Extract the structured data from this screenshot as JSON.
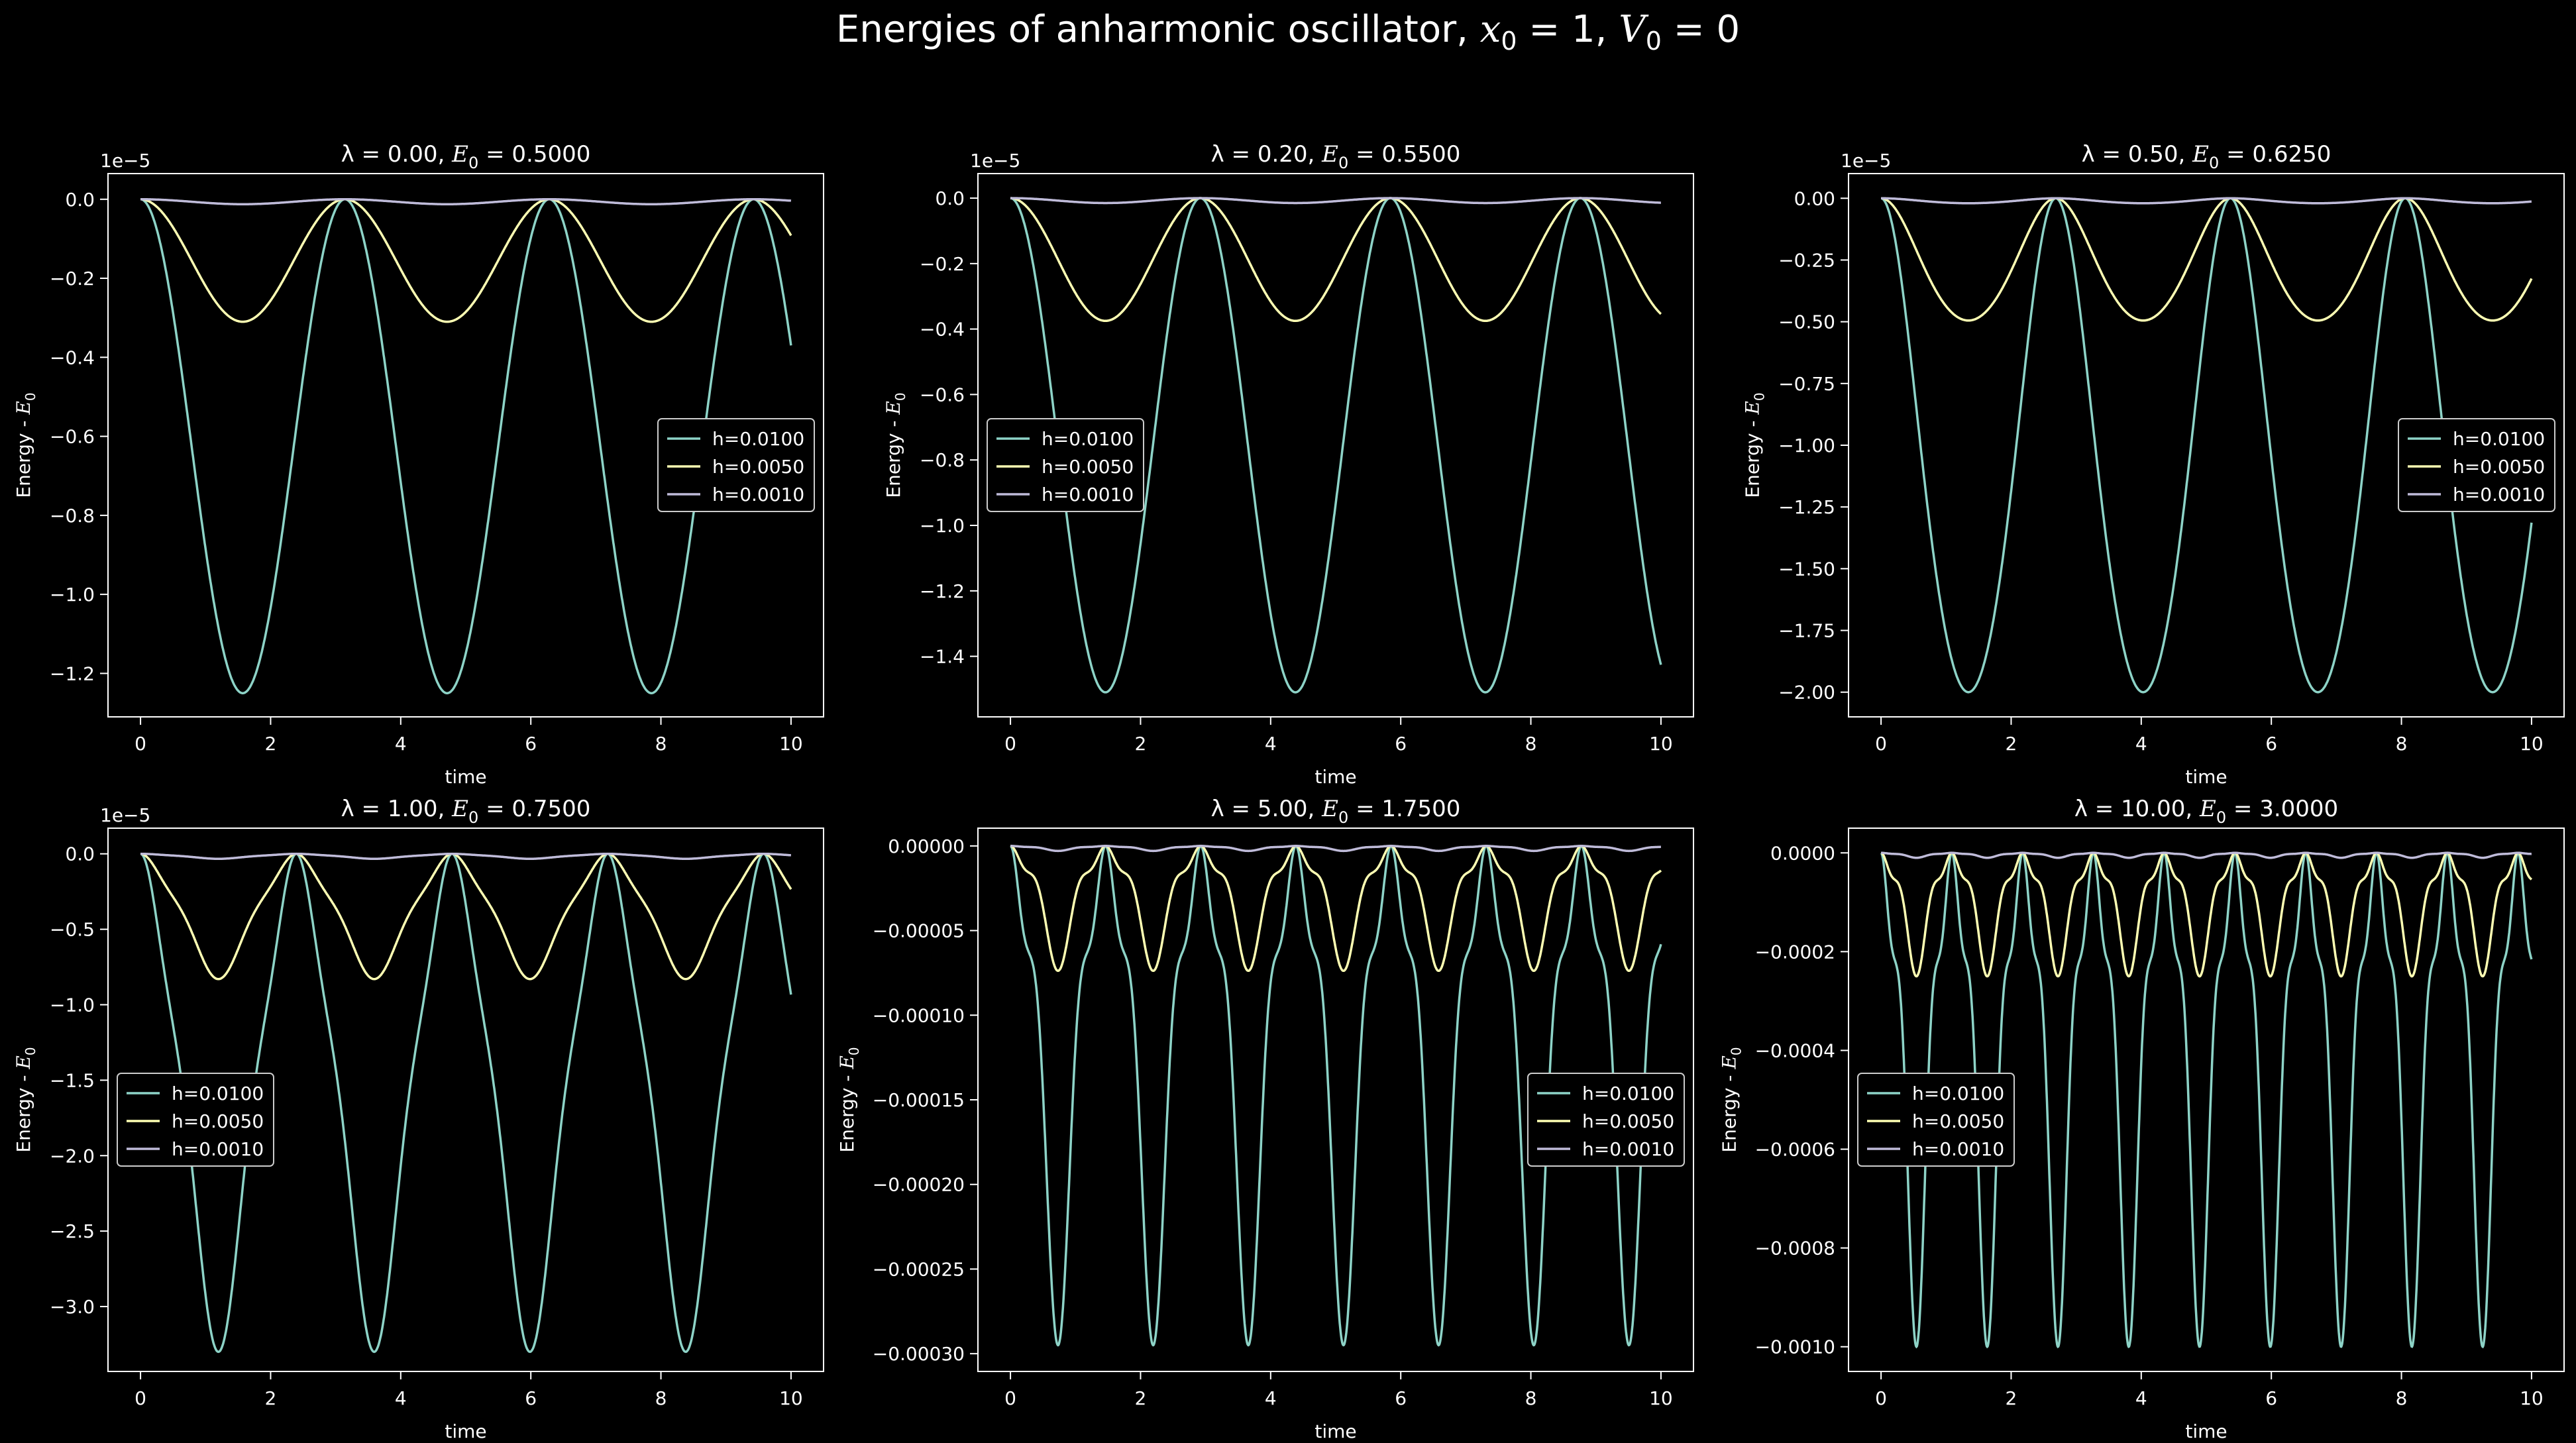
{
  "figure": {
    "background": "#000000",
    "foreground": "#ffffff",
    "title_text": "Energies of anharmonic oscillator, ",
    "title_math_1": "x",
    "title_math_1_sub": "0",
    "title_math_1_rest": " = 1,  ",
    "title_math_2": "V",
    "title_math_2_sub": "0",
    "title_math_2_rest": " = 0"
  },
  "colors": {
    "h=0.0100": "#8dd3c7",
    "h=0.0050": "#feffb3",
    "h=0.0010": "#bfbbd9",
    "axes": "#ffffff"
  },
  "chart_data": [
    {
      "type": "line",
      "title_lambda": "λ = 0.00,",
      "title_E": "E",
      "title_E_sub": "0",
      "title_E_value": " = 0.5000",
      "xlabel": "time",
      "ylabel_main": "Energy - ",
      "ylabel_E": "E",
      "ylabel_E_sub": "0",
      "offset_text": "1e−5",
      "xlim": [
        -0.5,
        10.5
      ],
      "ylim": [
        -1.31,
        0.065
      ],
      "xticks": [
        0,
        2,
        4,
        6,
        8,
        10
      ],
      "xtick_labels": [
        "0",
        "2",
        "4",
        "6",
        "8",
        "10"
      ],
      "yticks": [
        0,
        -0.2,
        -0.4,
        -0.6,
        -0.8,
        -1.0,
        -1.2
      ],
      "ytick_labels": [
        "0.0",
        "−0.2",
        "−0.4",
        "−0.6",
        "−0.8",
        "−1.0",
        "−1.2"
      ],
      "legend_position": "center-right",
      "series": [
        {
          "name": "h=0.0100",
          "curve": {
            "kind": "sin2",
            "amp": 1.25,
            "omega": 1.0
          }
        },
        {
          "name": "h=0.0050",
          "curve": {
            "kind": "sin2",
            "amp": 0.31,
            "omega": 1.0
          }
        },
        {
          "name": "h=0.0010",
          "curve": {
            "kind": "sin2",
            "amp": 0.0125,
            "omega": 1.0
          }
        }
      ]
    },
    {
      "type": "line",
      "title_lambda": "λ = 0.20,",
      "title_E": "E",
      "title_E_sub": "0",
      "title_E_value": " = 0.5500",
      "xlabel": "time",
      "ylabel_main": "Energy - ",
      "ylabel_E": "E",
      "ylabel_E_sub": "0",
      "offset_text": "1e−5",
      "xlim": [
        -0.5,
        10.5
      ],
      "ylim": [
        -1.585,
        0.075
      ],
      "xticks": [
        0,
        2,
        4,
        6,
        8,
        10
      ],
      "xtick_labels": [
        "0",
        "2",
        "4",
        "6",
        "8",
        "10"
      ],
      "yticks": [
        0,
        -0.2,
        -0.4,
        -0.6,
        -0.8,
        -1.0,
        -1.2,
        -1.4
      ],
      "ytick_labels": [
        "0.0",
        "−0.2",
        "−0.4",
        "−0.6",
        "−0.8",
        "−1.0",
        "−1.2",
        "−1.4"
      ],
      "legend_position": "center-left",
      "series": [
        {
          "name": "h=0.0100",
          "curve": {
            "kind": "sin2",
            "amp": 1.51,
            "omega": 1.0757
          }
        },
        {
          "name": "h=0.0050",
          "curve": {
            "kind": "sin2",
            "amp": 0.375,
            "omega": 1.0757
          }
        },
        {
          "name": "h=0.0010",
          "curve": {
            "kind": "sin2",
            "amp": 0.015,
            "omega": 1.0757
          }
        }
      ]
    },
    {
      "type": "line",
      "title_lambda": "λ = 0.50,",
      "title_E": "E",
      "title_E_sub": "0",
      "title_E_value": " = 0.6250",
      "xlabel": "time",
      "ylabel_main": "Energy - ",
      "ylabel_E": "E",
      "ylabel_E_sub": "0",
      "offset_text": "1e−5",
      "xlim": [
        -0.5,
        10.5
      ],
      "ylim": [
        -2.1,
        0.1
      ],
      "xticks": [
        0,
        2,
        4,
        6,
        8,
        10
      ],
      "xtick_labels": [
        "0",
        "2",
        "4",
        "6",
        "8",
        "10"
      ],
      "yticks": [
        0,
        -0.25,
        -0.5,
        -0.75,
        -1.0,
        -1.25,
        -1.5,
        -1.75,
        -2.0
      ],
      "ytick_labels": [
        "0.00",
        "−0.25",
        "−0.50",
        "−0.75",
        "−1.00",
        "−1.25",
        "−1.50",
        "−1.75",
        "−2.00"
      ],
      "legend_position": "center-right",
      "series": [
        {
          "name": "h=0.0100",
          "curve": {
            "kind": "flat",
            "amp": 2.0,
            "omega": 1.1696,
            "k": 0.36
          }
        },
        {
          "name": "h=0.0050",
          "curve": {
            "kind": "flat",
            "amp": 0.495,
            "omega": 1.1696,
            "k": 0.36
          }
        },
        {
          "name": "h=0.0010",
          "curve": {
            "kind": "flat",
            "amp": 0.02,
            "omega": 1.1696,
            "k": 0.36
          }
        }
      ]
    },
    {
      "type": "line",
      "title_lambda": "λ = 1.00,",
      "title_E": "E",
      "title_E_sub": "0",
      "title_E_value": " = 0.7500",
      "xlabel": "time",
      "ylabel_main": "Energy - ",
      "ylabel_E": "E",
      "ylabel_E_sub": "0",
      "offset_text": "1e−5",
      "xlim": [
        -0.5,
        10.5
      ],
      "ylim": [
        -3.43,
        0.17
      ],
      "xticks": [
        0,
        2,
        4,
        6,
        8,
        10
      ],
      "xtick_labels": [
        "0",
        "2",
        "4",
        "6",
        "8",
        "10"
      ],
      "yticks": [
        0,
        -0.5,
        -1.0,
        -1.5,
        -2.0,
        -2.5,
        -3.0
      ],
      "ytick_labels": [
        "0.0",
        "−0.5",
        "−1.0",
        "−1.5",
        "−2.0",
        "−2.5",
        "−3.0"
      ],
      "legend_position": "center-left",
      "series": [
        {
          "name": "h=0.0100",
          "curve": {
            "kind": "dip",
            "amp": 3.3,
            "omega": 1.312,
            "k": 0.55,
            "c": 0.3
          }
        },
        {
          "name": "h=0.0050",
          "curve": {
            "kind": "dip",
            "amp": 0.83,
            "omega": 1.312,
            "k": 0.55,
            "c": 0.3
          }
        },
        {
          "name": "h=0.0010",
          "curve": {
            "kind": "dip",
            "amp": 0.033,
            "omega": 1.312,
            "k": 0.55,
            "c": 0.3
          }
        }
      ]
    },
    {
      "type": "line",
      "title_lambda": "λ = 5.00,",
      "title_E": "E",
      "title_E_sub": "0",
      "title_E_value": " = 1.7500",
      "xlabel": "time",
      "ylabel_main": "Energy - ",
      "ylabel_E": "E",
      "ylabel_E_sub": "0",
      "offset_text": "",
      "xlim": [
        -0.5,
        10.5
      ],
      "ylim": [
        -0.0003105,
        1.05e-05
      ],
      "xticks": [
        0,
        2,
        4,
        6,
        8,
        10
      ],
      "xtick_labels": [
        "0",
        "2",
        "4",
        "6",
        "8",
        "10"
      ],
      "yticks": [
        0,
        -5e-05,
        -0.0001,
        -0.00015,
        -0.0002,
        -0.00025,
        -0.0003
      ],
      "ytick_labels": [
        "0.00000",
        "−0.00005",
        "−0.00010",
        "−0.00015",
        "−0.00020",
        "−0.00025",
        "−0.00030"
      ],
      "legend_position": "center-right",
      "series": [
        {
          "name": "h=0.0100",
          "curve": {
            "kind": "dip",
            "amp": 0.000295,
            "omega": 2.1477,
            "k": 0.7,
            "c": 0.6
          }
        },
        {
          "name": "h=0.0050",
          "curve": {
            "kind": "dip",
            "amp": 7.38e-05,
            "omega": 2.1477,
            "k": 0.7,
            "c": 0.6
          }
        },
        {
          "name": "h=0.0010",
          "curve": {
            "kind": "dip",
            "amp": 2.95e-06,
            "omega": 2.1477,
            "k": 0.7,
            "c": 0.6
          }
        }
      ]
    },
    {
      "type": "line",
      "title_lambda": "λ = 10.00,",
      "title_E": "E",
      "title_E_sub": "0",
      "title_E_value": " = 3.0000",
      "xlabel": "time",
      "ylabel_main": "Energy - ",
      "ylabel_E": "E",
      "ylabel_E_sub": "0",
      "offset_text": "",
      "xlim": [
        -0.5,
        10.5
      ],
      "ylim": [
        -0.00105,
        5e-05
      ],
      "xticks": [
        0,
        2,
        4,
        6,
        8,
        10
      ],
      "xtick_labels": [
        "0",
        "2",
        "4",
        "6",
        "8",
        "10"
      ],
      "yticks": [
        0,
        -0.0002,
        -0.0004,
        -0.0006,
        -0.0008,
        -0.001
      ],
      "ytick_labels": [
        "0.0000",
        "−0.0002",
        "−0.0004",
        "−0.0006",
        "−0.0008",
        "−0.0010"
      ],
      "legend_position": "center-left",
      "series": [
        {
          "name": "h=0.0100",
          "curve": {
            "kind": "dip",
            "amp": 0.001,
            "omega": 2.8874,
            "k": 0.75,
            "c": 0.6
          }
        },
        {
          "name": "h=0.0050",
          "curve": {
            "kind": "dip",
            "amp": 0.00025,
            "omega": 2.8874,
            "k": 0.75,
            "c": 0.6
          }
        },
        {
          "name": "h=0.0010",
          "curve": {
            "kind": "dip",
            "amp": 1e-05,
            "omega": 2.8874,
            "k": 0.75,
            "c": 0.6
          }
        }
      ]
    }
  ]
}
